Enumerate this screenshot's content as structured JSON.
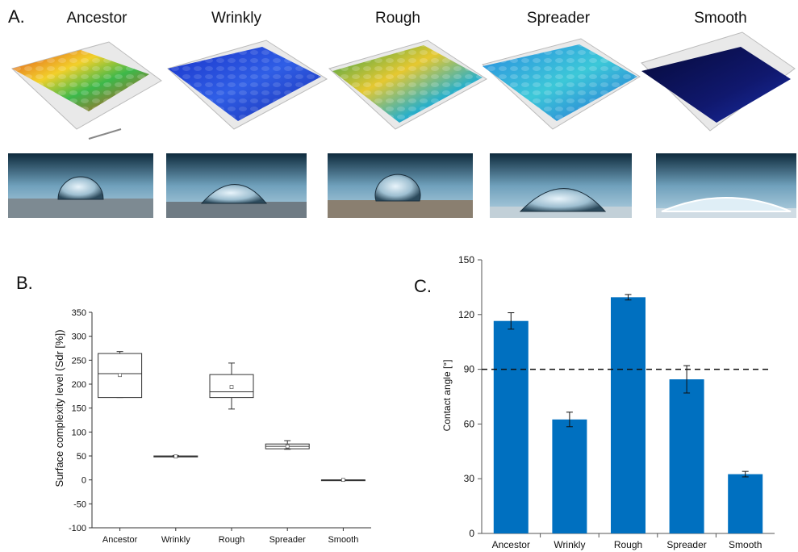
{
  "panel_a": {
    "letter": "A.",
    "strains": [
      "Ancestor",
      "Wrinkly",
      "Rough",
      "Spreader",
      "Smooth"
    ],
    "surface_colors": [
      "#d8b84a",
      "#2340d8",
      "#3d9c8a",
      "#37a6df",
      "#10186e"
    ]
  },
  "chart_data": [
    {
      "type": "box",
      "panel_letter": "B.",
      "title": "",
      "xlabel": "",
      "ylabel": "Surface complexity level (Sdr [%])",
      "ylim": [
        -100,
        350
      ],
      "yticks": [
        -100,
        -50,
        0,
        50,
        100,
        150,
        200,
        250,
        300,
        350
      ],
      "categories": [
        "Ancestor",
        "Wrinkly",
        "Rough",
        "Spreader",
        "Smooth"
      ],
      "boxes": [
        {
          "whisker_low": 172,
          "q1": 172,
          "median": 222,
          "q3": 264,
          "whisker_high": 268,
          "mean": 219
        },
        {
          "whisker_low": 48,
          "q1": 48,
          "median": 49,
          "q3": 50,
          "whisker_high": 51,
          "mean": 49
        },
        {
          "whisker_low": 148,
          "q1": 172,
          "median": 184,
          "q3": 220,
          "whisker_high": 244,
          "mean": 194
        },
        {
          "whisker_low": 64,
          "q1": 65,
          "median": 70,
          "q3": 75,
          "whisker_high": 82,
          "mean": 70
        },
        {
          "whisker_low": 0,
          "q1": 0,
          "median": 0,
          "q3": 0,
          "whisker_high": 0,
          "mean": 0
        }
      ],
      "grid": false
    },
    {
      "type": "bar",
      "panel_letter": "C.",
      "title": "",
      "xlabel": "",
      "ylabel": "Contact angle [°]",
      "ylim": [
        0,
        150
      ],
      "yticks": [
        0,
        30,
        60,
        90,
        120,
        150
      ],
      "categories": [
        "Ancestor",
        "Wrinkly",
        "Rough",
        "Spreader",
        "Smooth"
      ],
      "values": [
        116.5,
        62.5,
        129.5,
        84.5,
        32.5
      ],
      "errors": [
        4.5,
        4.0,
        1.5,
        7.5,
        1.5
      ],
      "reference_line": 90,
      "bar_color": "#0070c0",
      "grid": false
    }
  ]
}
